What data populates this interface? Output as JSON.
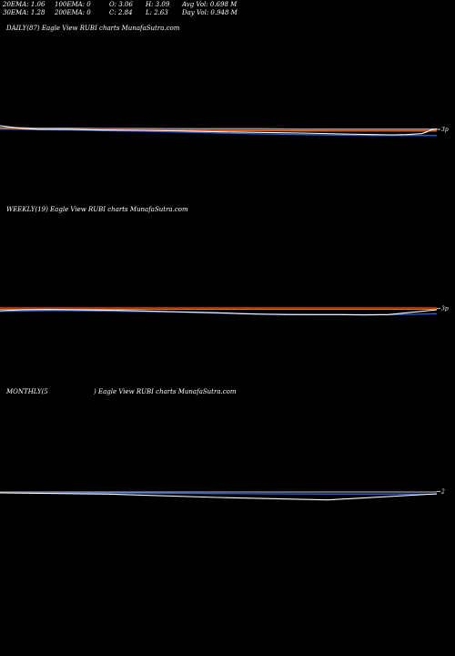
{
  "header": {
    "ema20": "20EMA: 1.06",
    "ema30": "30EMA: 1.28",
    "ema100": "100EMA: 0",
    "ema200": "200EMA: 0",
    "open": "O: 3.06",
    "close": "C: 2.84",
    "high": "H: 3.09",
    "low": "L: 2.63",
    "avg_vol": "Avg Vol: 0.698  M",
    "day_vol": "Day Vol: 0.948 M"
  },
  "colors": {
    "background": "#000000",
    "price": "#ffffff",
    "ema_blue": "#2a5fd8",
    "ema_orange": "#e07a10",
    "ema_red": "#c02020",
    "ema_grey": "#9a9a9a"
  },
  "chart_data": [
    {
      "type": "line",
      "title": "DAILY(87) Eagle  View  RUBI charts MunafaSutra.com",
      "ylim": [
        -2,
        16
      ],
      "x": [
        0,
        4,
        8,
        14,
        20,
        28,
        36,
        44,
        52,
        60,
        68,
        74,
        78,
        81,
        84,
        85,
        86,
        87
      ],
      "series": [
        {
          "role": "price",
          "color": "#ffffff",
          "values": [
            11.2,
            10.4,
            10.0,
            10.0,
            9.8,
            9.7,
            9.5,
            9.2,
            9.0,
            8.8,
            8.5,
            8.3,
            8.2,
            8.3,
            8.6,
            9.2,
            9.9,
            10.1
          ]
        },
        {
          "role": "ema",
          "color": "#2a5fd8",
          "values": [
            10.1,
            10.0,
            9.9,
            9.8,
            9.6,
            9.4,
            9.1,
            8.8,
            8.5,
            8.3,
            8.1,
            8.0,
            8.0,
            8.0,
            8.0,
            8.0,
            8.0,
            8.0
          ]
        },
        {
          "role": "ema",
          "color": "#e07a10",
          "values": [
            10.3,
            10.2,
            10.1,
            10.0,
            9.9,
            9.8,
            9.7,
            9.6,
            9.6,
            9.5,
            9.5,
            9.5,
            9.5,
            9.5,
            9.5,
            9.5,
            9.5,
            9.5
          ]
        },
        {
          "role": "ema",
          "color": "#c02020",
          "values": [
            10.4,
            10.4,
            10.3,
            10.2,
            10.1,
            10.0,
            10.0,
            9.9,
            9.9,
            9.9,
            9.8,
            9.8,
            9.8,
            9.8,
            9.8,
            9.8,
            9.8,
            9.8
          ]
        },
        {
          "role": "ema",
          "color": "#9a9a9a",
          "values": [
            10.5,
            10.5,
            10.4,
            10.4,
            10.3,
            10.3,
            10.2,
            10.2,
            10.2,
            10.1,
            10.1,
            10.1,
            10.1,
            10.1,
            10.1,
            10.1,
            10.1,
            10.1
          ]
        }
      ],
      "right_tick": {
        "value": 10.0,
        "label": "3p"
      }
    },
    {
      "type": "line",
      "title": "WEEKLY(19) Eagle  View  RUBI charts MunafaSutra.com",
      "ylim": [
        -2,
        16
      ],
      "x": [
        0,
        1,
        2,
        3,
        4,
        5,
        6,
        7,
        8,
        9,
        10,
        11,
        12,
        13,
        14,
        15,
        16,
        17,
        18
      ],
      "series": [
        {
          "role": "price",
          "color": "#ffffff",
          "values": [
            10.3,
            10.6,
            10.7,
            10.6,
            10.5,
            10.4,
            10.2,
            10.0,
            9.8,
            9.6,
            9.3,
            9.1,
            9.0,
            9.0,
            9.0,
            8.9,
            9.0,
            9.8,
            10.6
          ]
        },
        {
          "role": "ema",
          "color": "#2a5fd8",
          "values": [
            10.1,
            10.2,
            10.3,
            10.3,
            10.2,
            10.1,
            10.0,
            9.9,
            9.7,
            9.5,
            9.3,
            9.2,
            9.1,
            9.0,
            9.0,
            9.0,
            9.0,
            9.1,
            9.3
          ]
        },
        {
          "role": "ema",
          "color": "#e07a10",
          "values": [
            10.8,
            10.8,
            10.8,
            10.8,
            10.8,
            10.8,
            10.8,
            10.8,
            10.8,
            10.8,
            10.8,
            10.8,
            10.8,
            10.8,
            10.8,
            10.8,
            10.8,
            10.8,
            10.8
          ]
        },
        {
          "role": "ema",
          "color": "#c02020",
          "values": [
            11.3,
            11.3,
            11.3,
            11.3,
            11.3,
            11.3,
            11.3,
            11.3,
            11.3,
            11.3,
            11.3,
            11.3,
            11.3,
            11.3,
            11.3,
            11.3,
            11.3,
            11.3,
            11.3
          ]
        }
      ],
      "right_tick": {
        "value": 11.0,
        "label": "3p"
      }
    },
    {
      "type": "line",
      "title_left": "MONTHLY(5",
      "title_right": ") Eagle  View  RUBI charts MunafaSutra.com",
      "ylim": [
        -2,
        16
      ],
      "x": [
        0,
        1,
        2,
        3,
        4
      ],
      "series": [
        {
          "role": "price",
          "color": "#ffffff",
          "values": [
            9.7,
            9.3,
            8.2,
            7.4,
            9.4
          ]
        },
        {
          "role": "ema",
          "color": "#2a5fd8",
          "values": [
            9.8,
            9.7,
            9.5,
            9.3,
            9.3
          ]
        },
        {
          "role": "ema",
          "color": "#9a9a9a",
          "values": [
            10.0,
            10.0,
            10.0,
            10.0,
            10.0
          ]
        }
      ],
      "right_tick": {
        "value": 10.2,
        "label": "2"
      }
    }
  ]
}
